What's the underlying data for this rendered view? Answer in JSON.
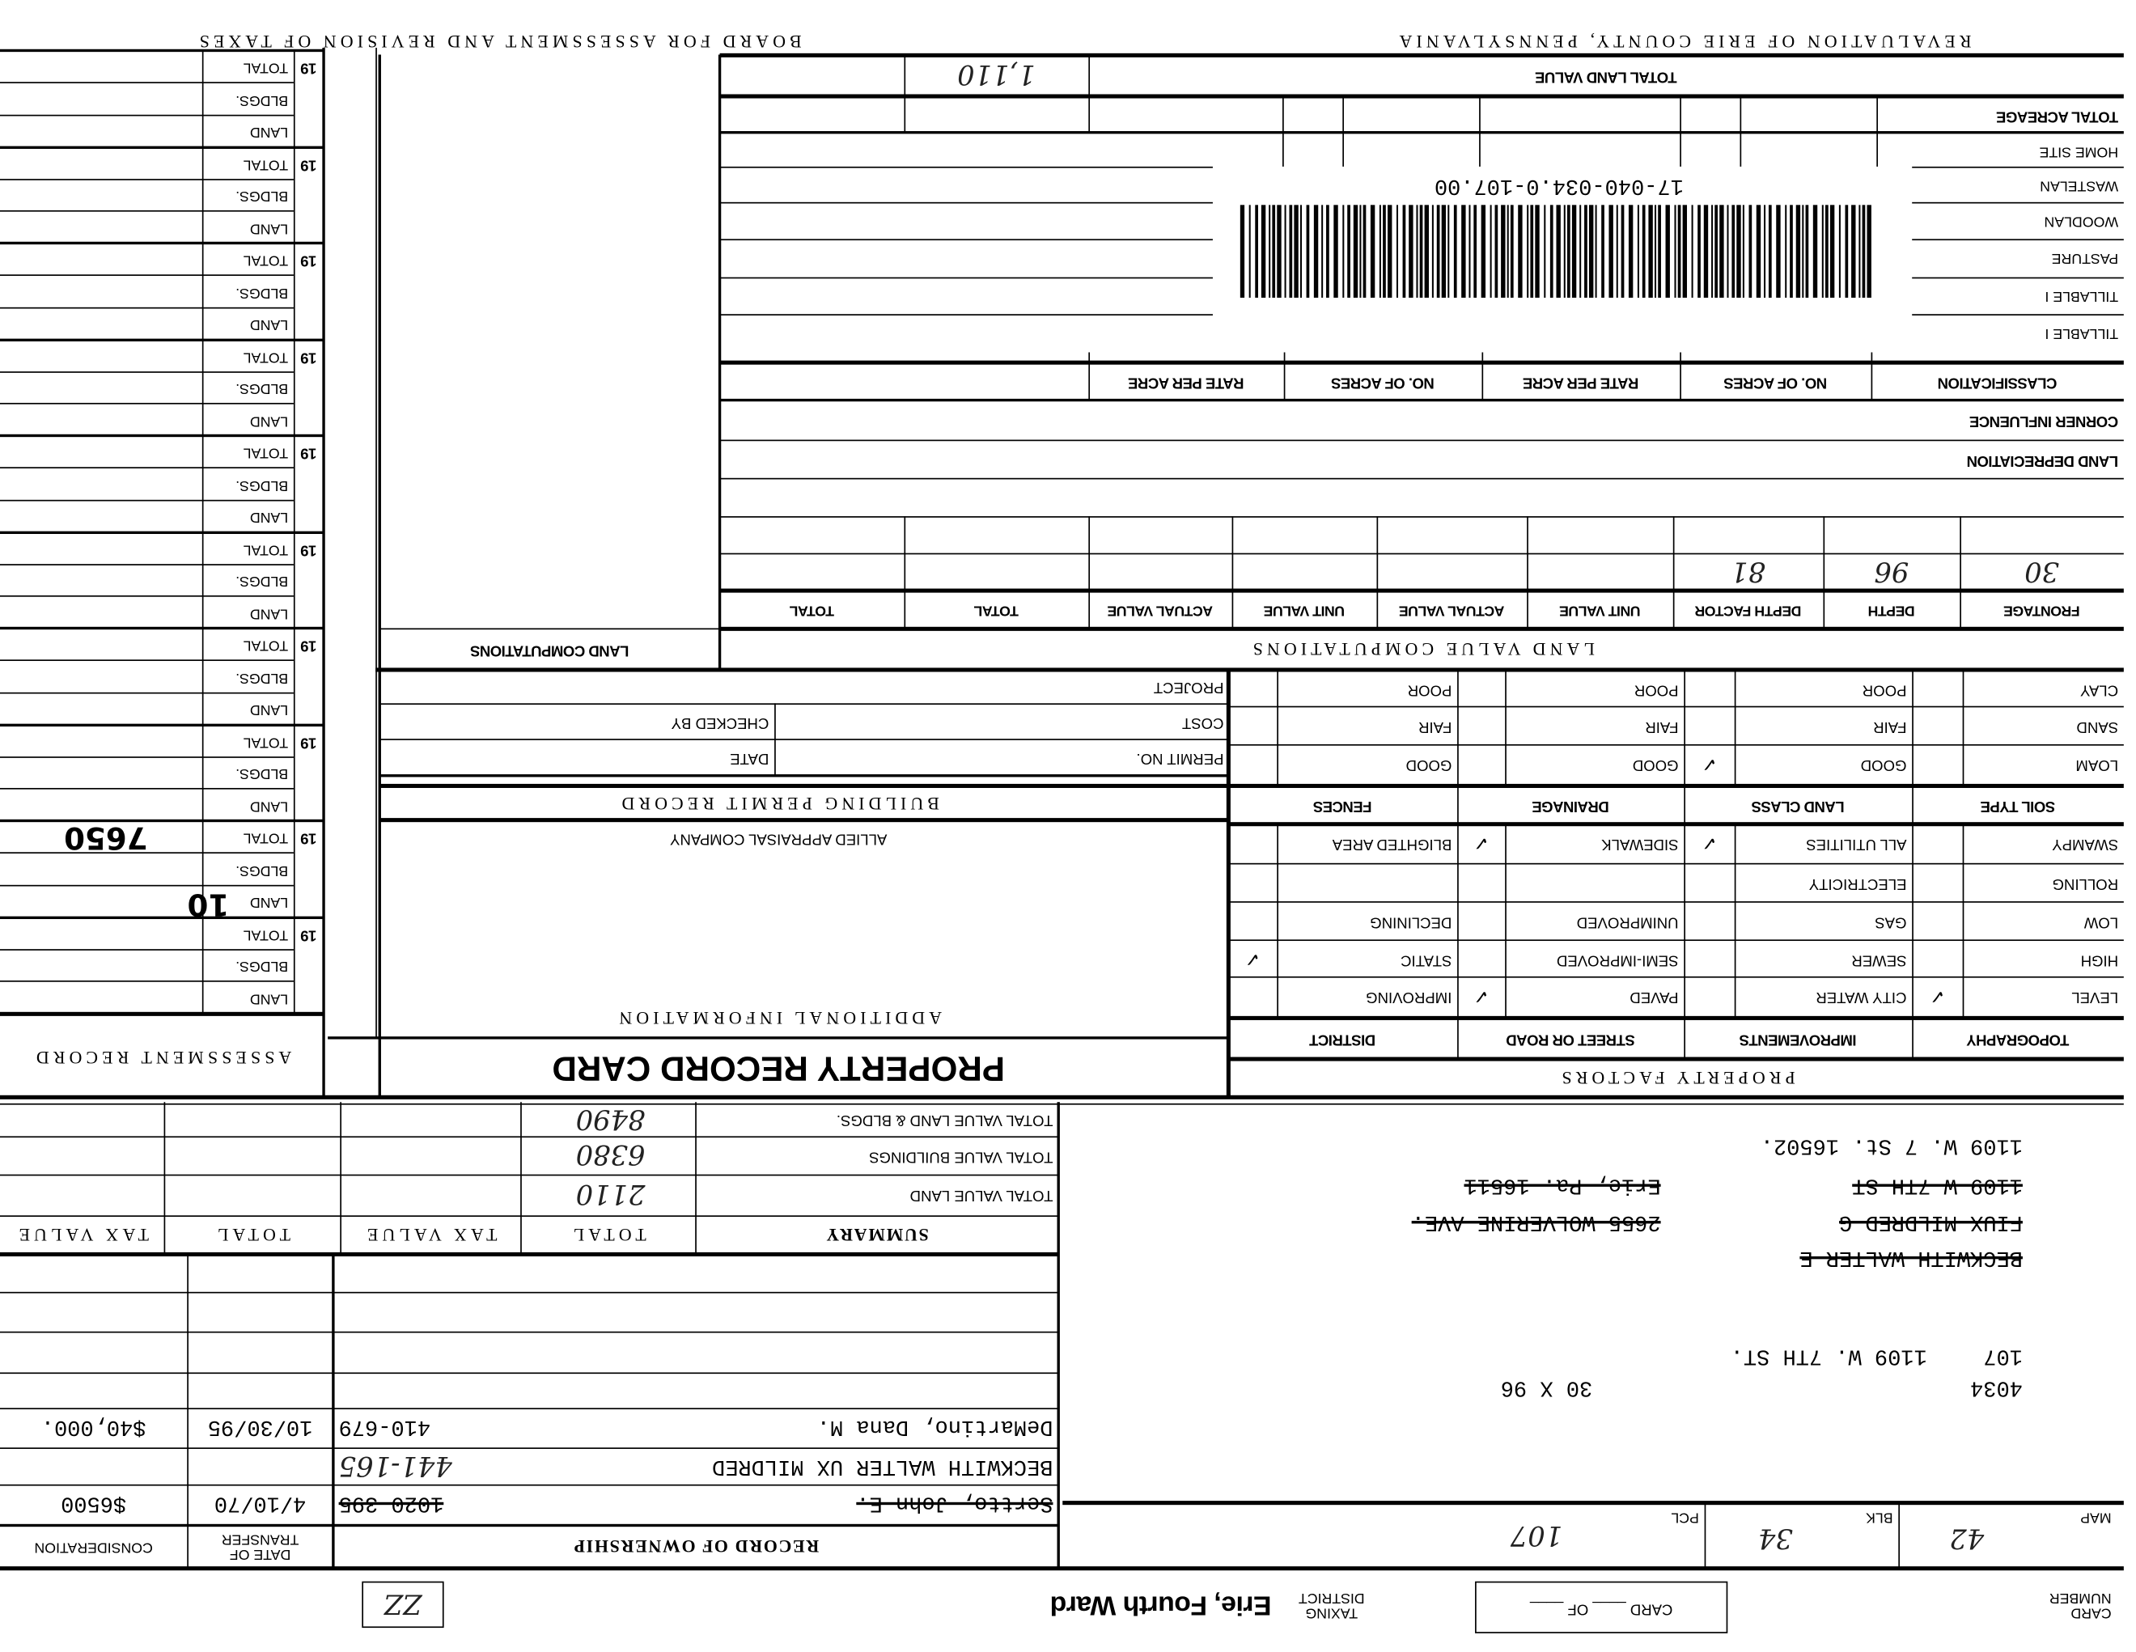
{
  "header": {
    "left_title": "BOARD FOR ASSESSMENT AND REVISION OF TAXES",
    "right_title": "REVALUATION OF ERIE COUNTY, PENNSYLVANIA"
  },
  "land": {
    "total_land_value": "TOTAL LAND VALUE",
    "total_acreage": "TOTAL ACREAGE",
    "rows": [
      "HOME SITE",
      "WASTELAN",
      "WOODLAN",
      "PASTURE",
      "TILLABLE I",
      "TILLABLE I"
    ],
    "classification_headers": [
      "CLASSIFICATION",
      "NO. OF ACRES",
      "RATE PER ACRE",
      "NO. OF ACRES",
      "RATE PER ACRE"
    ],
    "corner_influence": "CORNER INFLUENCE",
    "land_depreciation": "LAND DEPRECIATION",
    "computation_headers": [
      "FRONTAGE",
      "DEPTH",
      "DEPTH FACTOR",
      "UNIT VALUE",
      "ACTUAL VALUE",
      "UNIT VALUE",
      "ACTUAL VALUE",
      "TOTAL",
      "TOTAL"
    ],
    "entries": {
      "frontage": "30",
      "depth": "96",
      "depth_factor": "81"
    },
    "section_title": "LAND VALUE COMPUTATIONS",
    "parcel_id": "17-040-034.0-107.00"
  },
  "land_computations_title": "LAND COMPUTATIONS",
  "assessment": {
    "title": "ASSESSMENT RECORD",
    "year_prefix": "19",
    "row_labels": [
      "TOTAL",
      "BLDGS.",
      "LAND"
    ],
    "handwritten_total": "7650",
    "handwritten_land": "10"
  },
  "property_record_card": "PROPERTY RECORD CARD",
  "additional_information": {
    "title": "ADDITIONAL INFORMATION",
    "company": "ALLIED APPRAISAL COMPANY"
  },
  "building_permit": {
    "title": "BUILDING PERMIT RECORD",
    "permit_no": "PERMIT NO.",
    "date": "DATE",
    "cost": "COST",
    "checked_by": "CHECKED BY",
    "project": "PROJECT"
  },
  "property_factors": {
    "title": "PROPERTY FACTORS",
    "headers": [
      "TOPOGRAPHY",
      "IMPROVEMENTS",
      "STREET OR ROAD",
      "DISTRICT"
    ],
    "rows": [
      [
        "LEVEL",
        "CITY WATER",
        "PAVED",
        "IMPROVING"
      ],
      [
        "HIGH",
        "SEWER",
        "SEMI-IMPROVED",
        "STATIC"
      ],
      [
        "LOW",
        "GAS",
        "UNIMPROVED",
        "DECLINING"
      ],
      [
        "ROLLING",
        "ELECTRICITY",
        "",
        ""
      ],
      [
        "SWAMPY",
        "ALL UTILITIES",
        "SIDEWALK",
        "BLIGHTED AREA"
      ]
    ],
    "soil_headers": [
      "SOIL TYPE",
      "LAND CLASS",
      "DRAINAGE",
      "FENCES"
    ],
    "soil_rows": [
      [
        "LOAM",
        "GOOD",
        "GOOD",
        "GOOD"
      ],
      [
        "SAND",
        "FAIR",
        "FAIR",
        "FAIR"
      ],
      [
        "CLAY",
        "POOR",
        "POOR",
        "POOR"
      ]
    ],
    "checked": [
      "LEVEL",
      "PAVED",
      "STATIC",
      "ALL UTILITIES",
      "SIDEWALK",
      "LAND CLASS: GOOD"
    ]
  },
  "summary": {
    "headers": [
      "SUMMARY",
      "TOTAL",
      "TAX VALUE",
      "TOTAL",
      "TAX VALUE"
    ],
    "rows": [
      "TOTAL VALUE LAND",
      "TOTAL VALUE BUILDINGS",
      "TOTAL VALUE LAND & BLDGS."
    ]
  },
  "ownership": {
    "title": "RECORD OF OWNERSHIP",
    "date_header": "DATE OF TRANSFER",
    "consideration_header": "CONSIDERATION",
    "entries": [
      {
        "name": "Sertto, John E.",
        "book": "1020-395",
        "date": "4/10/70",
        "consideration": "$6500"
      },
      {
        "name": "BECKWITH WALTER UX MILDRED",
        "book": "441-165",
        "date": "",
        "consideration": ""
      },
      {
        "name": "DeMartino, Dana M.",
        "book": "410-679",
        "date": "10/30/95",
        "consideration": "$40,000."
      }
    ]
  },
  "owner_block": {
    "current_address": "1109 W. 7 St. 16502.",
    "old_address_1": "1109 W 7TH ST",
    "old_city": "Erie, Pa. 16511",
    "old_owner_2": "FIUX MILDRED G",
    "old_address_2": "2655 WOLVERINE AVE.",
    "old_owner_1": "BECKWITH WALTER E",
    "parcel": "107",
    "street": "1109 W. 7TH ST.",
    "lot_code": "4034",
    "dimensions": "30 X 96"
  },
  "map_row": {
    "map_label": "MAP",
    "map": "42",
    "blk_label": "BLK",
    "blk": "34",
    "pcl_label": "PCL",
    "pcl": "107"
  },
  "footer": {
    "card_number": "CARD NUMBER",
    "card_of": "CARD ____ OF ____",
    "taxing_district_label": "TAXING DISTRICT",
    "taxing_district": "Erie, Fourth Ward",
    "box_mark": "ZZ"
  }
}
